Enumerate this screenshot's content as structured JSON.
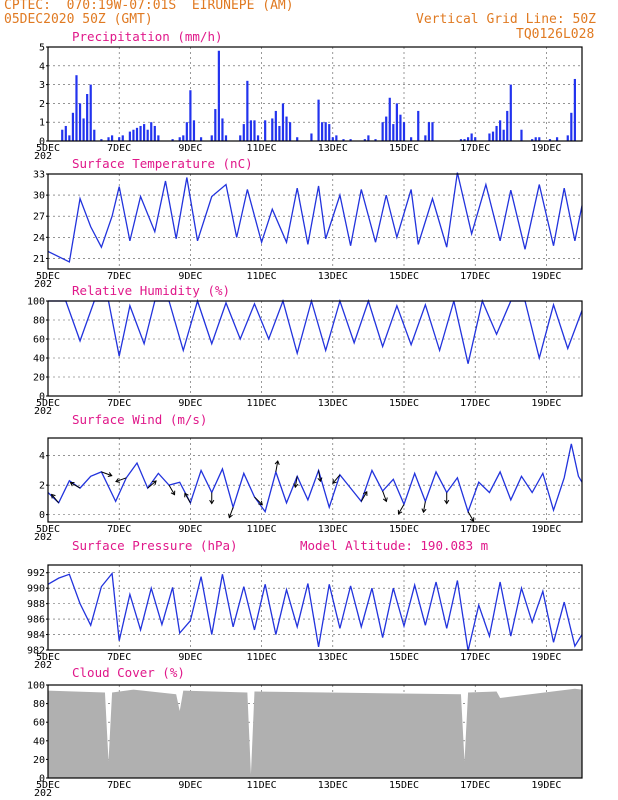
{
  "header": {
    "line1": "CPTEC:  070:19W-07:01S  EIRUNEPE (AM)",
    "line2": "05DEC2020 50Z (GMT)",
    "right1": "Vertical Grid Line: 50Z",
    "right2": "TQ0126L028"
  },
  "x_tick_labels": [
    "5DEC",
    "7DEC",
    "9DEC",
    "11DEC",
    "13DEC",
    "15DEC",
    "17DEC",
    "19DEC"
  ],
  "x_tick_days": [
    5,
    7,
    9,
    11,
    13,
    15,
    17,
    19
  ],
  "x_year_fragment": "202",
  "x_range_days": [
    5,
    20
  ],
  "colors": {
    "line": "#2233dd",
    "bar": "#2233ee",
    "cloud": "#b0b0b0",
    "title": "#e0188a",
    "header": "#e07a22",
    "arrow": "#000000"
  },
  "chart_data": [
    {
      "type": "bar",
      "title": "Precipitation (mm/h)",
      "ylim": [
        0,
        5
      ],
      "yticks": [
        0,
        1,
        2,
        3,
        4,
        5
      ],
      "grid": true,
      "series": [
        {
          "day": [
            5.4,
            5.5,
            5.6,
            5.7,
            5.8,
            5.9,
            6.0,
            6.1,
            6.2,
            6.3,
            6.5,
            6.7,
            6.8,
            7.0,
            7.1,
            7.3,
            7.4,
            7.5,
            7.6,
            7.7,
            7.8,
            7.9,
            8.0,
            8.1,
            8.5,
            8.7,
            8.8,
            8.9,
            9.0,
            9.1,
            9.3,
            9.6,
            9.7,
            9.8,
            9.9,
            10.0,
            10.4,
            10.5,
            10.6,
            10.7,
            10.8,
            10.9,
            11.1,
            11.3,
            11.4,
            11.5,
            11.6,
            11.7,
            11.8,
            12.0,
            12.4,
            12.6,
            12.7,
            12.8,
            12.9,
            13.0,
            13.1,
            13.3,
            13.5,
            13.9,
            14.0,
            14.2,
            14.4,
            14.5,
            14.6,
            14.7,
            14.8,
            14.9,
            15.0,
            15.2,
            15.4,
            15.6,
            15.7,
            15.8,
            16.6,
            16.7,
            16.8,
            16.9,
            17.0,
            17.4,
            17.5,
            17.6,
            17.7,
            17.8,
            17.9,
            18.0,
            18.3,
            18.6,
            18.7,
            18.8,
            19.1,
            19.3,
            19.6,
            19.7,
            19.8
          ],
          "values": [
            0.6,
            0.8,
            0.3,
            1.5,
            3.5,
            2.0,
            1.2,
            2.5,
            3.0,
            0.6,
            0.1,
            0.2,
            0.3,
            0.2,
            0.3,
            0.5,
            0.6,
            0.7,
            0.8,
            0.9,
            0.6,
            1.0,
            0.8,
            0.3,
            0.1,
            0.2,
            0.3,
            1.0,
            2.7,
            1.1,
            0.2,
            0.3,
            1.7,
            4.8,
            1.2,
            0.3,
            0.3,
            0.9,
            3.2,
            1.1,
            1.1,
            0.3,
            1.1,
            1.2,
            1.6,
            0.8,
            2.0,
            1.3,
            1.0,
            0.2,
            0.4,
            2.2,
            1.0,
            1.0,
            0.9,
            0.2,
            0.3,
            0.1,
            0.1,
            0.1,
            0.3,
            0.1,
            1.0,
            1.3,
            2.3,
            0.9,
            2.0,
            1.4,
            1.0,
            0.2,
            1.6,
            0.3,
            1.0,
            1.0,
            0.1,
            0.1,
            0.2,
            0.4,
            0.2,
            0.4,
            0.5,
            0.8,
            1.1,
            0.6,
            1.6,
            3.0,
            0.6,
            0.1,
            0.2,
            0.2,
            0.1,
            0.2,
            0.3,
            1.5,
            3.3
          ]
        }
      ]
    },
    {
      "type": "line",
      "title": "Surface Temperature (nC)",
      "ylim": [
        19.5,
        33
      ],
      "yticks": [
        21,
        24,
        27,
        30,
        33
      ],
      "grid": true,
      "series": [
        {
          "day": [
            5.0,
            5.4,
            5.6,
            5.9,
            6.2,
            6.5,
            6.8,
            7.0,
            7.3,
            7.6,
            8.0,
            8.3,
            8.6,
            8.9,
            9.2,
            9.6,
            10.0,
            10.3,
            10.6,
            11.0,
            11.3,
            11.7,
            12.0,
            12.3,
            12.6,
            12.8,
            13.2,
            13.5,
            13.8,
            14.2,
            14.5,
            14.8,
            15.2,
            15.4,
            15.8,
            16.2,
            16.5,
            16.9,
            17.3,
            17.7,
            18.0,
            18.4,
            18.8,
            19.2,
            19.5,
            19.8,
            20.0
          ],
          "values": [
            22.0,
            21.0,
            20.5,
            29.5,
            25.5,
            22.6,
            27.0,
            31.2,
            23.5,
            29.8,
            24.8,
            32.0,
            23.8,
            32.5,
            23.5,
            29.8,
            31.5,
            24.0,
            30.8,
            23.3,
            28.0,
            23.3,
            31.0,
            23.0,
            31.3,
            23.8,
            30.0,
            22.8,
            30.8,
            23.3,
            30.0,
            24.0,
            30.8,
            23.0,
            29.5,
            22.6,
            33.2,
            24.5,
            31.5,
            23.5,
            30.7,
            22.3,
            31.5,
            22.8,
            31.0,
            23.5,
            28.5
          ]
        }
      ]
    },
    {
      "type": "line",
      "title": "Relative Humidity (%)",
      "ylim": [
        0,
        100
      ],
      "yticks": [
        0,
        20,
        40,
        60,
        80,
        100
      ],
      "grid": true,
      "series": [
        {
          "day": [
            5.0,
            5.5,
            5.9,
            6.3,
            6.7,
            7.0,
            7.3,
            7.7,
            8.0,
            8.4,
            8.8,
            9.2,
            9.6,
            10.0,
            10.4,
            10.8,
            11.2,
            11.6,
            12.0,
            12.4,
            12.8,
            13.2,
            13.6,
            14.0,
            14.4,
            14.8,
            15.2,
            15.6,
            16.0,
            16.4,
            16.8,
            17.2,
            17.6,
            18.0,
            18.4,
            18.8,
            19.2,
            19.6,
            20.0
          ],
          "values": [
            100,
            100,
            58,
            100,
            100,
            42,
            95,
            55,
            100,
            100,
            48,
            100,
            55,
            98,
            60,
            97,
            60,
            100,
            45,
            100,
            48,
            100,
            56,
            100,
            52,
            95,
            54,
            96,
            48,
            100,
            34,
            100,
            65,
            100,
            100,
            40,
            96,
            50,
            90
          ]
        }
      ]
    },
    {
      "type": "line",
      "title": "Surface Wind (m/s)",
      "ylim": [
        -0.5,
        5.2
      ],
      "yticks": [
        0,
        2,
        4
      ],
      "grid": true,
      "series": [
        {
          "day": [
            5.0,
            5.3,
            5.6,
            5.9,
            6.2,
            6.5,
            6.9,
            7.2,
            7.5,
            7.8,
            8.1,
            8.4,
            8.7,
            9.0,
            9.3,
            9.6,
            9.9,
            10.2,
            10.5,
            10.8,
            11.1,
            11.4,
            11.7,
            12.0,
            12.3,
            12.6,
            12.9,
            13.2,
            13.5,
            13.8,
            14.1,
            14.4,
            14.7,
            15.0,
            15.3,
            15.6,
            15.9,
            16.2,
            16.5,
            16.8,
            17.1,
            17.4,
            17.7,
            18.0,
            18.3,
            18.6,
            18.9,
            19.2,
            19.5,
            19.7,
            19.9,
            20.0
          ],
          "values": [
            1.5,
            0.8,
            2.3,
            1.8,
            2.6,
            2.9,
            0.9,
            2.5,
            3.5,
            1.8,
            2.8,
            2.0,
            2.2,
            0.8,
            3.0,
            1.5,
            3.1,
            0.5,
            2.8,
            1.2,
            0.2,
            2.9,
            0.8,
            2.6,
            1.0,
            3.0,
            0.5,
            2.7,
            1.8,
            0.9,
            3.0,
            1.6,
            2.4,
            0.7,
            2.8,
            0.9,
            2.9,
            1.5,
            2.5,
            0.2,
            2.2,
            1.5,
            2.9,
            1.0,
            2.6,
            1.5,
            2.8,
            0.3,
            2.5,
            4.8,
            2.6,
            2.2
          ]
        }
      ]
    },
    {
      "type": "line",
      "title": "Surface Pressure (hPa)",
      "annotation": "Model Altitude: 190.083 m",
      "ylim": [
        982,
        993
      ],
      "yticks": [
        982,
        984,
        986,
        988,
        990,
        992
      ],
      "grid": true,
      "series": [
        {
          "day": [
            5.0,
            5.3,
            5.6,
            5.9,
            6.2,
            6.5,
            6.8,
            7.0,
            7.3,
            7.6,
            7.9,
            8.2,
            8.5,
            8.7,
            9.0,
            9.3,
            9.6,
            9.9,
            10.2,
            10.5,
            10.8,
            11.1,
            11.4,
            11.7,
            12.0,
            12.3,
            12.6,
            12.9,
            13.2,
            13.5,
            13.8,
            14.1,
            14.4,
            14.7,
            15.0,
            15.3,
            15.6,
            15.9,
            16.2,
            16.5,
            16.8,
            17.1,
            17.4,
            17.7,
            18.0,
            18.3,
            18.6,
            18.9,
            19.2,
            19.5,
            19.8,
            20.0
          ],
          "values": [
            990.5,
            991.3,
            991.8,
            988.0,
            985.2,
            990.2,
            991.9,
            983.2,
            989.2,
            984.6,
            990.0,
            985.3,
            990.1,
            984.2,
            985.8,
            991.5,
            984.0,
            991.8,
            985.0,
            990.2,
            984.6,
            990.5,
            984.0,
            989.8,
            985.0,
            990.6,
            982.4,
            990.5,
            984.8,
            990.3,
            985.0,
            990.0,
            983.6,
            990.0,
            985.1,
            990.4,
            985.2,
            990.8,
            984.8,
            991.0,
            981.9,
            987.8,
            983.8,
            990.8,
            983.8,
            990.0,
            985.6,
            989.6,
            983.0,
            988.2,
            982.5,
            984.0
          ]
        }
      ]
    },
    {
      "type": "area",
      "title": "Cloud Cover (%)",
      "ylim": [
        0,
        100
      ],
      "yticks": [
        0,
        20,
        40,
        60,
        80,
        100
      ],
      "grid": true,
      "series": [
        {
          "day": [
            5.0,
            6.6,
            6.7,
            6.8,
            7.4,
            8.6,
            8.7,
            8.8,
            10.6,
            10.7,
            10.8,
            16.6,
            16.7,
            16.8,
            17.6,
            17.7,
            19.8,
            20.0
          ],
          "values": [
            94,
            92,
            18,
            92,
            95,
            90,
            72,
            94,
            92,
            4,
            93,
            90,
            18,
            92,
            93,
            86,
            96,
            95
          ]
        }
      ]
    }
  ]
}
